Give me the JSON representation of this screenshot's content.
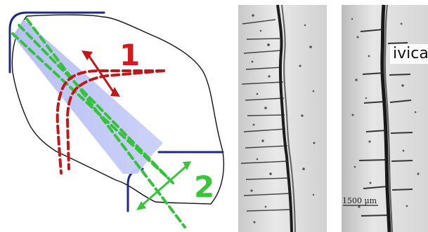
{
  "diagram": {
    "labels": {
      "one": "1",
      "two": "2"
    },
    "colors": {
      "outline": "#1f2a7a",
      "edge_fill": "#b7bff2",
      "red_dash": "#c01818",
      "green_dash": "#33c23a",
      "label_red": "#d4191c",
      "label_green": "#39c63b"
    }
  },
  "micrographs": {
    "left_panel": {
      "shade": "#d7d7d7"
    },
    "right_panel": {
      "shade": "#d9d9d9",
      "watermark": "ivica",
      "scale_bar": "1500 μm"
    }
  }
}
